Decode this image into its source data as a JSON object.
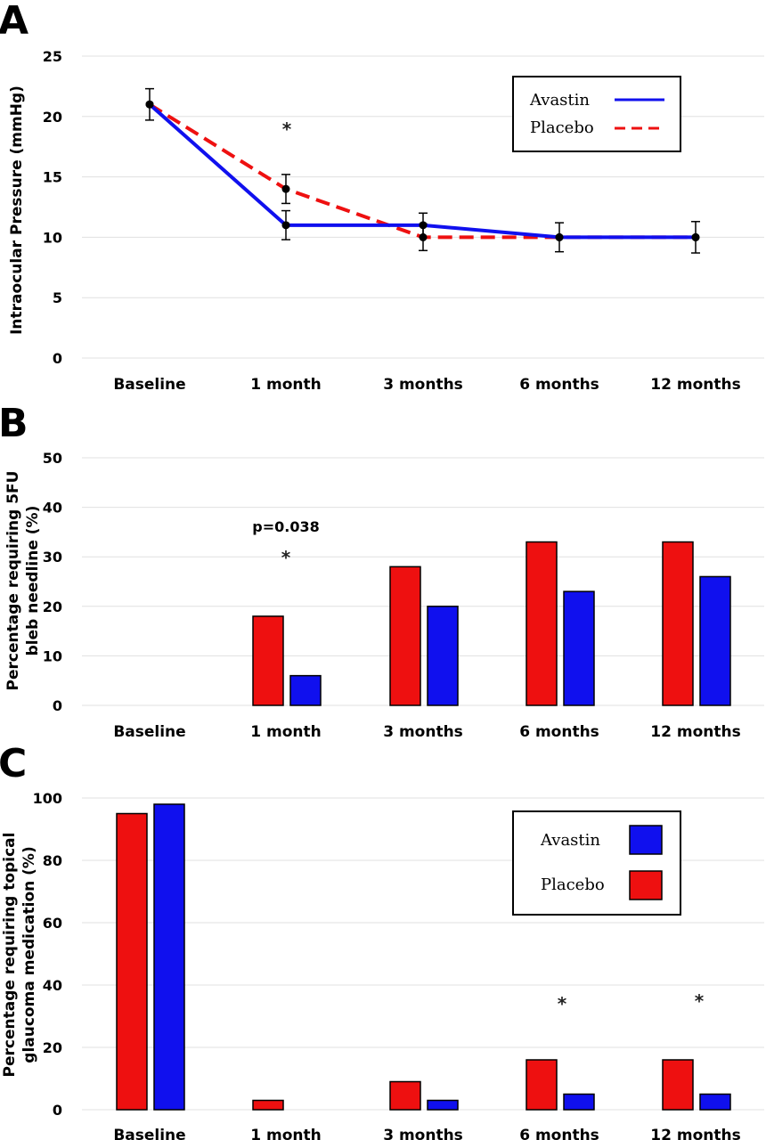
{
  "colors": {
    "avastin": "#1010ee",
    "placebo": "#ee1010"
  },
  "chart_data": [
    {
      "id": "A",
      "type": "line",
      "panel_label": "A",
      "ylabel": "Intraocular Pressure (mmHg)",
      "xlabel": "",
      "categories": [
        "Baseline",
        "1 month",
        "3 months",
        "6 months",
        "12 months"
      ],
      "ylim": [
        0,
        25
      ],
      "yticks": [
        "0",
        "5",
        "10",
        "15",
        "20",
        "25"
      ],
      "grid": true,
      "series": [
        {
          "name": "Avastin",
          "values": [
            21,
            11,
            11,
            10,
            10
          ],
          "style": "solid",
          "error": [
            1.3,
            1.2,
            1.0,
            1.2,
            1.3
          ]
        },
        {
          "name": "Placebo",
          "values": [
            21,
            14,
            10,
            10,
            10
          ],
          "style": "dashed",
          "error": [
            1.3,
            1.2,
            1.1,
            1.2,
            1.3
          ]
        }
      ],
      "legend": {
        "position": "top-right",
        "entries": [
          "Avastin",
          "Placebo"
        ]
      },
      "annotations": [
        {
          "category": "1 month",
          "text": "*"
        }
      ]
    },
    {
      "id": "B",
      "type": "bar",
      "panel_label": "B",
      "ylabel": "Percentage requiring 5FU bleb needline (%)",
      "ylabel_lines": [
        "Percentage requiring 5FU",
        "bleb needline (%)"
      ],
      "xlabel": "",
      "categories": [
        "Baseline",
        "1 month",
        "3 months",
        "6 months",
        "12 months"
      ],
      "ylim": [
        0,
        50
      ],
      "yticks": [
        "0",
        "10",
        "20",
        "30",
        "40",
        "50"
      ],
      "grid": true,
      "series": [
        {
          "name": "Placebo",
          "values": [
            0,
            18,
            28,
            33,
            33
          ]
        },
        {
          "name": "Avastin",
          "values": [
            0,
            6,
            20,
            23,
            26
          ]
        }
      ],
      "annotations": [
        {
          "category": "1 month",
          "text": "p=0.038"
        },
        {
          "category": "1 month",
          "text": "*"
        }
      ]
    },
    {
      "id": "C",
      "type": "bar",
      "panel_label": "C",
      "ylabel": "Percentage requiring topical glaucoma medication (%)",
      "ylabel_lines": [
        "Percentage requiring topical",
        "glaucoma medication (%)"
      ],
      "xlabel": "",
      "categories": [
        "Baseline",
        "1 month",
        "3 months",
        "6 months",
        "12 months"
      ],
      "ylim": [
        0,
        100
      ],
      "yticks": [
        "0",
        "20",
        "40",
        "60",
        "80",
        "100"
      ],
      "grid": true,
      "series": [
        {
          "name": "Placebo",
          "values": [
            95,
            3,
            9,
            16,
            16
          ]
        },
        {
          "name": "Avastin",
          "values": [
            98,
            0,
            3,
            5,
            5
          ]
        }
      ],
      "legend": {
        "position": "top-right",
        "entries": [
          "Avastin",
          "Placebo"
        ]
      },
      "annotations": [
        {
          "category": "6 months",
          "text": "*"
        },
        {
          "category": "12 months",
          "text": "*"
        }
      ]
    }
  ]
}
